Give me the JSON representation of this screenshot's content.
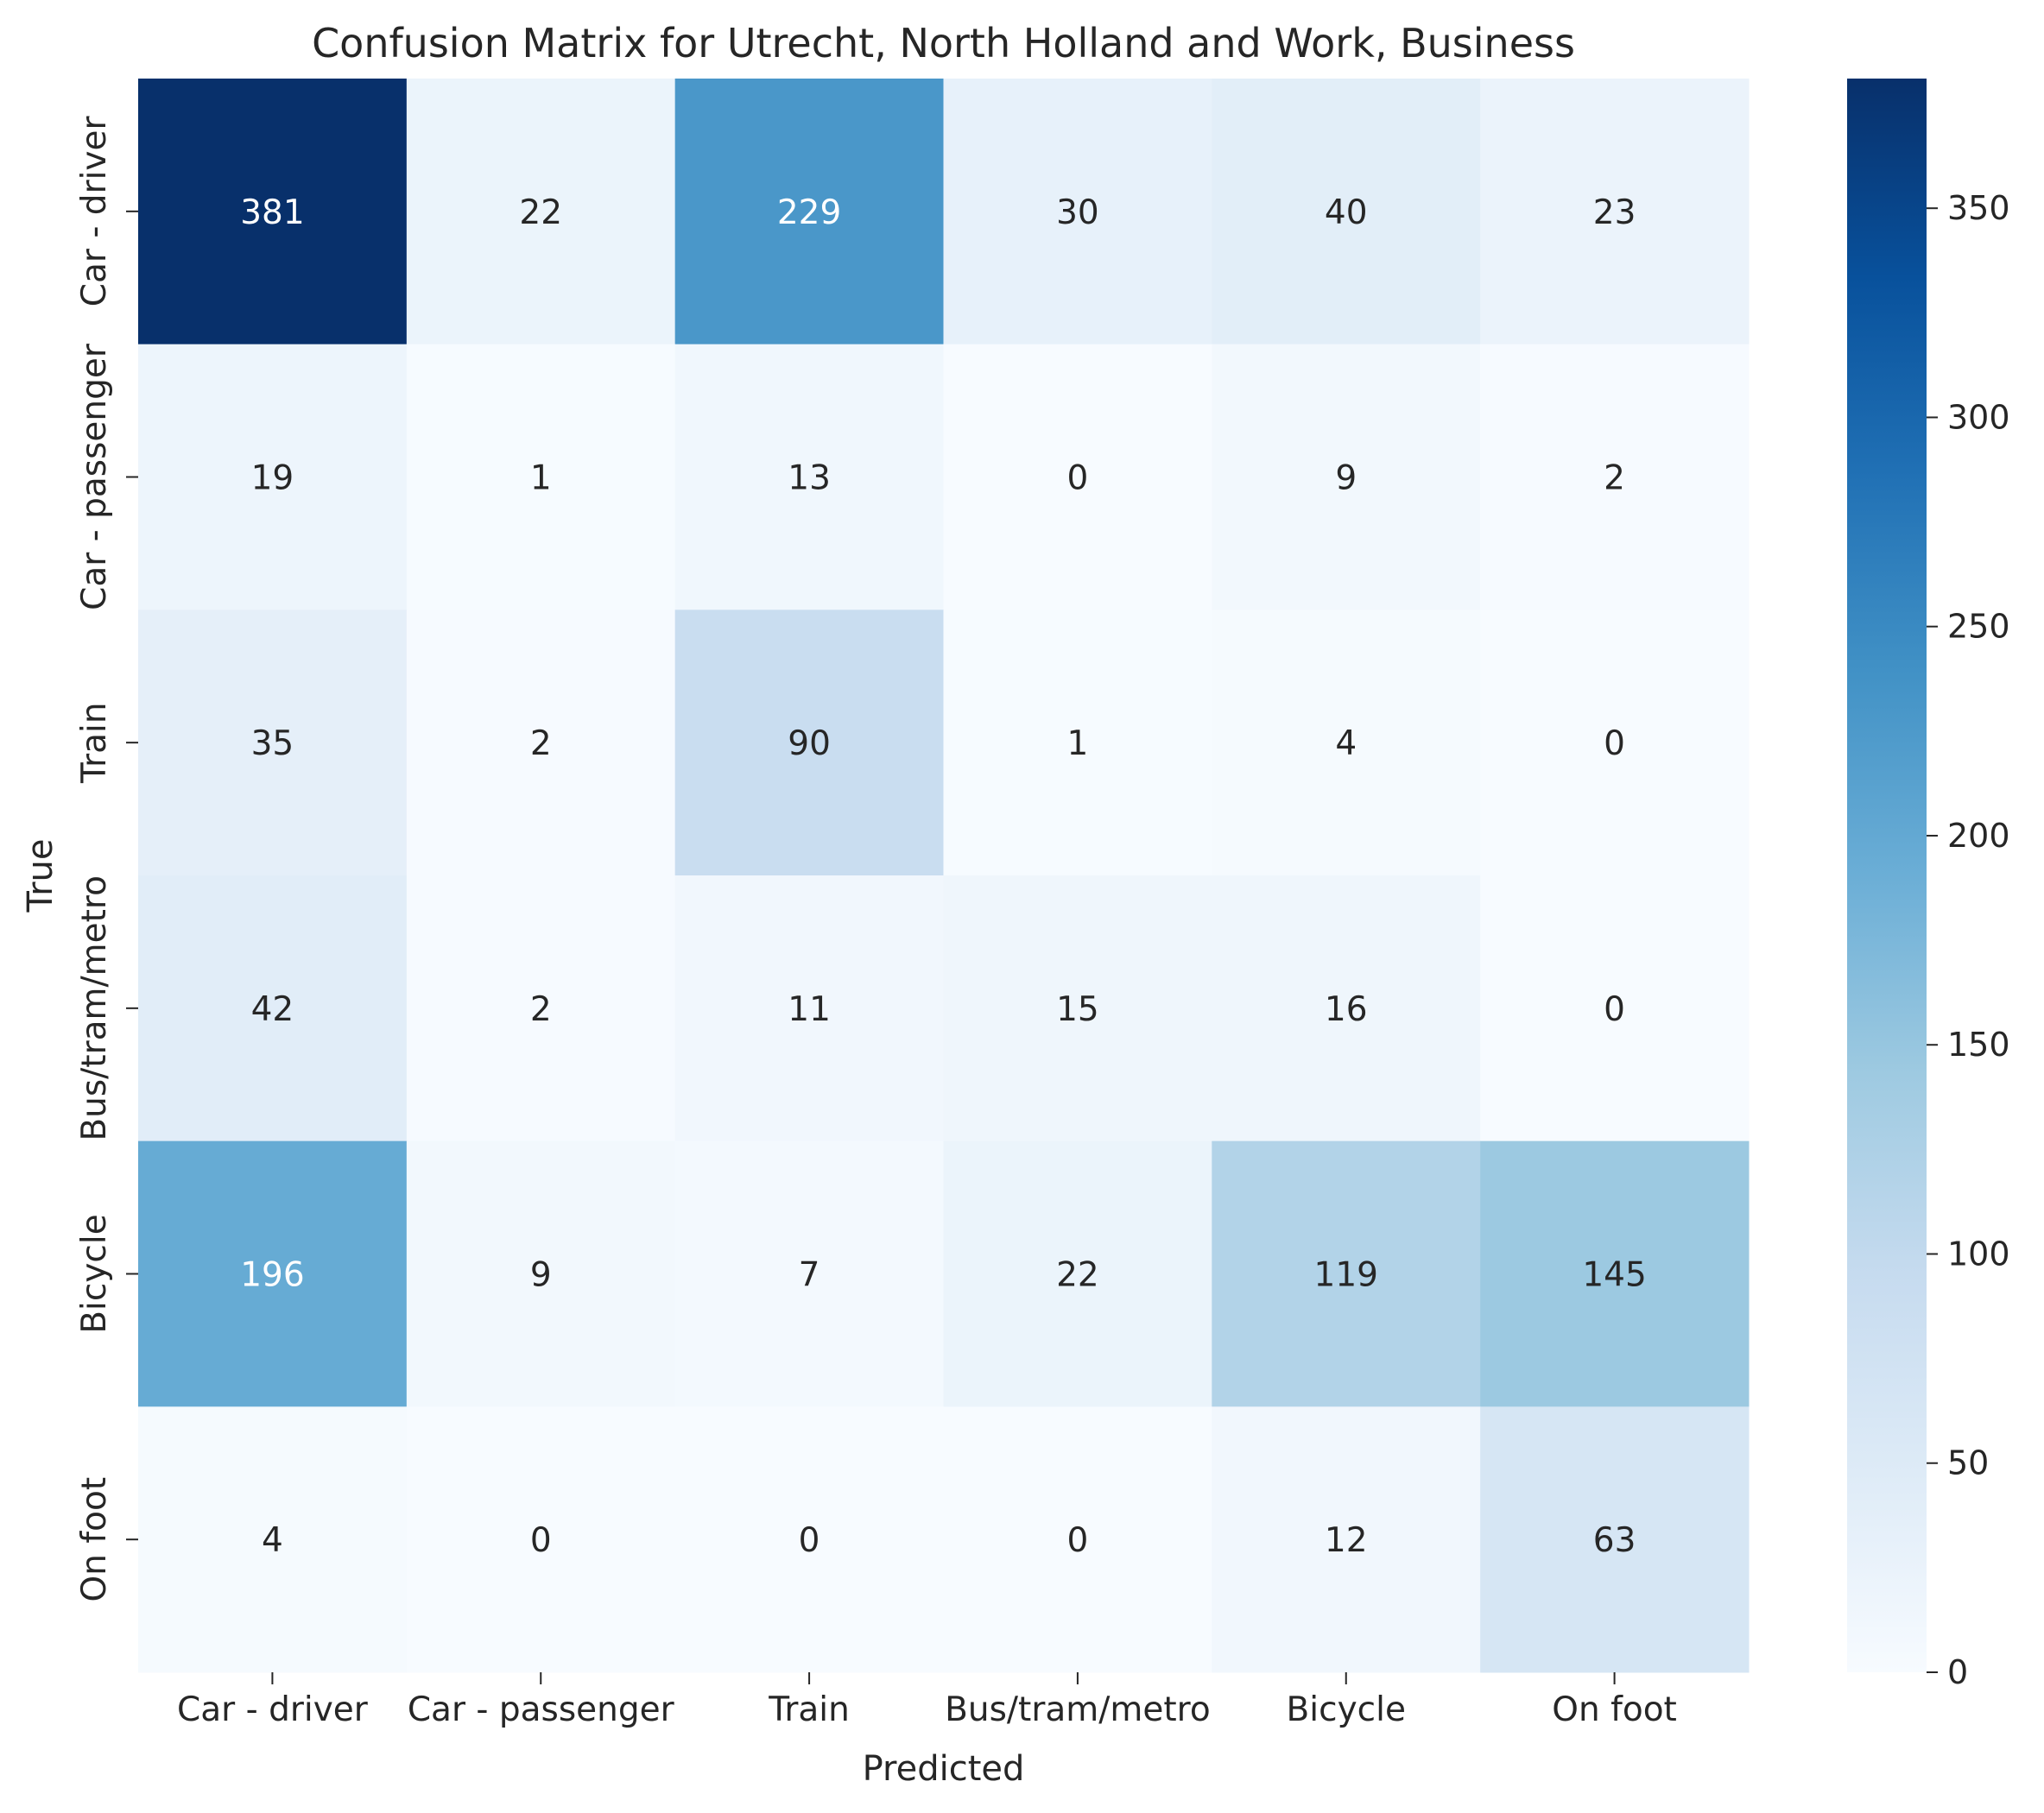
{
  "chart_data": {
    "type": "heatmap",
    "title": "Confusion Matrix for Utrecht, North Holland and Work, Business",
    "xlabel": "Predicted",
    "ylabel": "True",
    "x_categories": [
      "Car - driver",
      "Car - passenger",
      "Train",
      "Bus/tram/metro",
      "Bicycle",
      "On foot"
    ],
    "y_categories": [
      "Car - driver",
      "Car - passenger",
      "Train",
      "Bus/tram/metro",
      "Bicycle",
      "On foot"
    ],
    "values": [
      [
        381,
        22,
        229,
        30,
        40,
        23
      ],
      [
        19,
        1,
        13,
        0,
        9,
        2
      ],
      [
        35,
        2,
        90,
        1,
        4,
        0
      ],
      [
        42,
        2,
        11,
        15,
        16,
        0
      ],
      [
        196,
        9,
        7,
        22,
        119,
        145
      ],
      [
        4,
        0,
        0,
        0,
        12,
        63
      ]
    ],
    "colormap": "Blues",
    "colorbar": {
      "range": [
        0,
        381
      ],
      "ticks": [
        0,
        50,
        100,
        150,
        200,
        250,
        300,
        350
      ]
    },
    "colors": {
      "low": "#f7fbff",
      "high": "#08306b",
      "text_dark": "#262626",
      "text_light": "#ffffff"
    }
  }
}
